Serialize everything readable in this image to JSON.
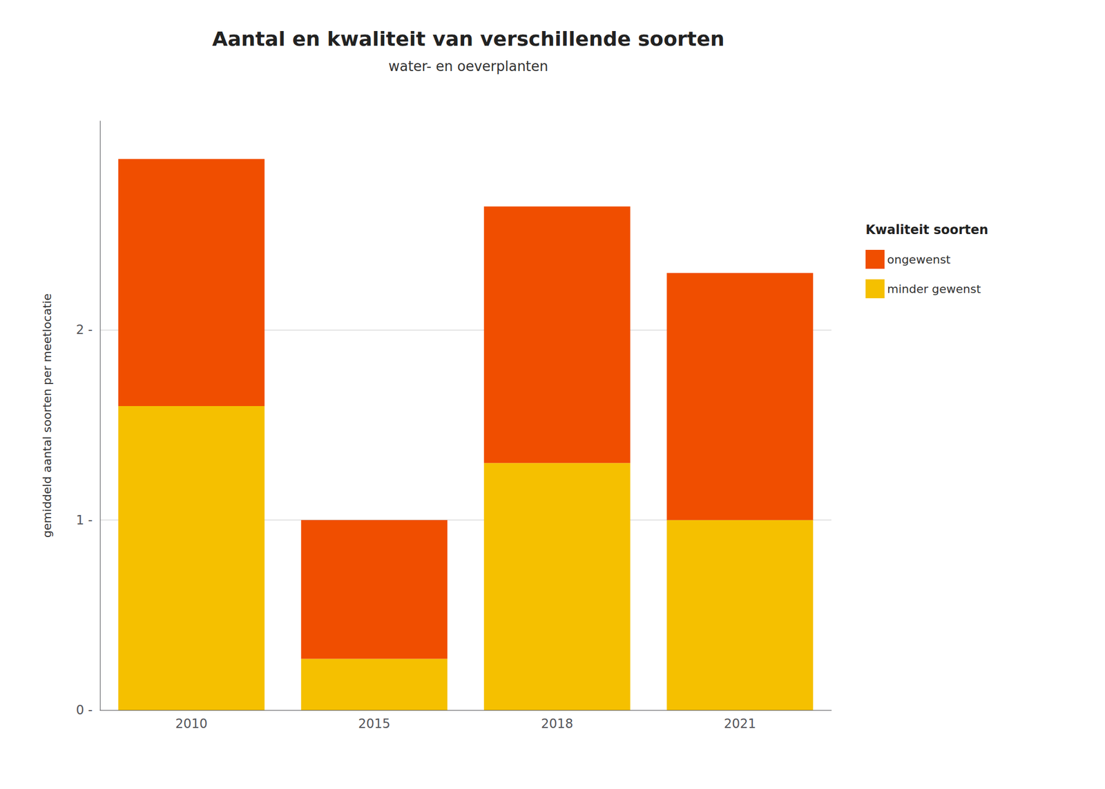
{
  "chart_data": {
    "type": "bar",
    "stacked": true,
    "title": "Aantal en kwaliteit van verschillende soorten",
    "subtitle": "water- en oeverplanten",
    "ylabel": "gemiddeld aantal soorten per meetlocatie",
    "legend_title": "Kwaliteit soorten",
    "categories": [
      "2010",
      "2015",
      "2018",
      "2021"
    ],
    "series": [
      {
        "name": "minder gewenst",
        "color": "#F5C000",
        "values": [
          1.6,
          0.27,
          1.3,
          1.0
        ]
      },
      {
        "name": "ongewenst",
        "color": "#F04E00",
        "values": [
          1.3,
          0.73,
          1.35,
          1.3
        ]
      }
    ],
    "ylim": [
      0,
      3.1
    ],
    "yticks": [
      {
        "value": 0,
        "label": "0 -"
      },
      {
        "value": 1,
        "label": "1 -"
      },
      {
        "value": 2,
        "label": "2 -"
      }
    ],
    "grid": true,
    "legend": "right"
  }
}
